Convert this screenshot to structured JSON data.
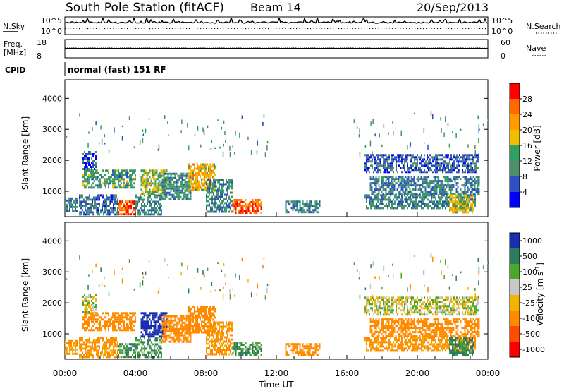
{
  "header": {
    "station": "South Pole Station (fitACF)",
    "beam": "Beam 14",
    "date": "20/Sep/2013"
  },
  "sky_panel": {
    "left_label": "N.Sky",
    "left_ticks": [
      "10^5",
      "10^0"
    ],
    "right_ticks": [
      "10^5",
      "10^0"
    ],
    "right_label": "N.Search"
  },
  "freq_panel": {
    "left_label_1": "Freq.",
    "left_label_2": "[MHz]",
    "left_ticks": [
      "18",
      "8"
    ],
    "right_ticks": [
      "60",
      "0"
    ],
    "right_label": "Nave"
  },
  "cpid": {
    "label": "CPID",
    "value": "normal (fast) 151 RF"
  },
  "colors": {
    "power": [
      "#0000ff",
      "#2e4fbf",
      "#4e8f6e",
      "#2ea060",
      "#f0c000",
      "#ff9a00",
      "#ff6a00",
      "#ff0000"
    ],
    "velocity": [
      "#ff0000",
      "#ff4d00",
      "#ff8a00",
      "#f2b400",
      "#c8c8c8",
      "#4aa82a",
      "#2e7a60",
      "#1a2fb0"
    ]
  },
  "chart_data": [
    {
      "type": "heatmap",
      "panel": "power",
      "ylabel": "Slant Range [km]",
      "ylim": [
        180,
        4600
      ],
      "yticks": [
        "1000",
        "2000",
        "3000",
        "4000"
      ],
      "xlim": [
        "00:00",
        "24:00"
      ],
      "colorbar": {
        "label": "Power [dB]",
        "ticks": [
          "4",
          "8",
          "12",
          "16",
          "20",
          "24",
          "28"
        ],
        "range": [
          0,
          30
        ]
      },
      "regions": [
        {
          "t0": 0.0,
          "t1": 0.7,
          "r0": 300,
          "r1": 800,
          "level": 9
        },
        {
          "t0": 0.8,
          "t1": 3.0,
          "r0": 200,
          "r1": 900,
          "level": 8
        },
        {
          "t0": 1.0,
          "t1": 4.0,
          "r0": 1100,
          "r1": 1700,
          "level": 12
        },
        {
          "t0": 1.0,
          "t1": 1.8,
          "r0": 1700,
          "r1": 2300,
          "level": 6
        },
        {
          "t0": 3.0,
          "t1": 4.0,
          "r0": 200,
          "r1": 700,
          "level": 27
        },
        {
          "t0": 4.0,
          "t1": 5.5,
          "r0": 200,
          "r1": 900,
          "level": 10
        },
        {
          "t0": 4.3,
          "t1": 5.8,
          "r0": 900,
          "r1": 1700,
          "level": 16
        },
        {
          "t0": 5.5,
          "t1": 7.2,
          "r0": 700,
          "r1": 1600,
          "level": 11
        },
        {
          "t0": 7.0,
          "t1": 8.6,
          "r0": 1000,
          "r1": 1900,
          "level": 20
        },
        {
          "t0": 8.0,
          "t1": 9.5,
          "r0": 300,
          "r1": 1400,
          "level": 10
        },
        {
          "t0": 9.5,
          "t1": 11.2,
          "r0": 250,
          "r1": 750,
          "level": 27
        },
        {
          "t0": 12.5,
          "t1": 14.5,
          "r0": 300,
          "r1": 700,
          "level": 10
        },
        {
          "t0": 17.0,
          "t1": 23.3,
          "r0": 400,
          "r1": 900,
          "level": 10
        },
        {
          "t0": 17.3,
          "t1": 23.5,
          "r0": 900,
          "r1": 1500,
          "level": 9
        },
        {
          "t0": 17.0,
          "t1": 23.5,
          "r0": 1600,
          "r1": 2200,
          "level": 7
        },
        {
          "t0": 21.8,
          "t1": 23.2,
          "r0": 300,
          "r1": 900,
          "level": 18
        }
      ]
    },
    {
      "type": "heatmap",
      "panel": "velocity",
      "xlabel": "Time UT",
      "ylabel": "Slant Range [km]",
      "ylim": [
        180,
        4600
      ],
      "yticks": [
        "1000",
        "2000",
        "3000",
        "4000"
      ],
      "xticks": [
        "00:00",
        "04:00",
        "08:00",
        "12:00",
        "16:00",
        "20:00",
        "00:00"
      ],
      "xlim": [
        "00:00",
        "24:00"
      ],
      "colorbar": {
        "label": "Velocity [m s",
        "label_exp": "-1",
        "label_close": "]",
        "ticks": [
          "1000",
          "500",
          "100",
          "25",
          "-25",
          "-100",
          "-500",
          "-1000"
        ],
        "range": [
          -1000,
          1000
        ]
      },
      "regions": [
        {
          "t0": 0.0,
          "t1": 0.7,
          "r0": 300,
          "r1": 800,
          "level": -120
        },
        {
          "t0": 0.8,
          "t1": 3.0,
          "r0": 200,
          "r1": 900,
          "level": -150
        },
        {
          "t0": 1.0,
          "t1": 4.0,
          "r0": 1100,
          "r1": 1700,
          "level": -200
        },
        {
          "t0": 1.0,
          "t1": 1.8,
          "r0": 1700,
          "r1": 2300,
          "level": 0
        },
        {
          "t0": 3.0,
          "t1": 4.0,
          "r0": 200,
          "r1": 700,
          "level": 100
        },
        {
          "t0": 4.0,
          "t1": 5.5,
          "r0": 200,
          "r1": 900,
          "level": 80
        },
        {
          "t0": 4.3,
          "t1": 5.8,
          "r0": 900,
          "r1": 1700,
          "level": 600
        },
        {
          "t0": 5.5,
          "t1": 7.2,
          "r0": 700,
          "r1": 1600,
          "level": -200
        },
        {
          "t0": 7.0,
          "t1": 8.6,
          "r0": 1000,
          "r1": 1900,
          "level": -300
        },
        {
          "t0": 8.0,
          "t1": 9.5,
          "r0": 300,
          "r1": 1400,
          "level": -150
        },
        {
          "t0": 9.5,
          "t1": 11.2,
          "r0": 250,
          "r1": 750,
          "level": 110
        },
        {
          "t0": 12.5,
          "t1": 14.5,
          "r0": 300,
          "r1": 700,
          "level": -200
        },
        {
          "t0": 17.0,
          "t1": 23.3,
          "r0": 400,
          "r1": 900,
          "level": -150
        },
        {
          "t0": 17.3,
          "t1": 23.5,
          "r0": 900,
          "r1": 1500,
          "level": -250
        },
        {
          "t0": 17.0,
          "t1": 23.5,
          "r0": 1600,
          "r1": 2200,
          "level": 0
        },
        {
          "t0": 21.8,
          "t1": 23.2,
          "r0": 300,
          "r1": 900,
          "level": 150
        }
      ]
    }
  ]
}
